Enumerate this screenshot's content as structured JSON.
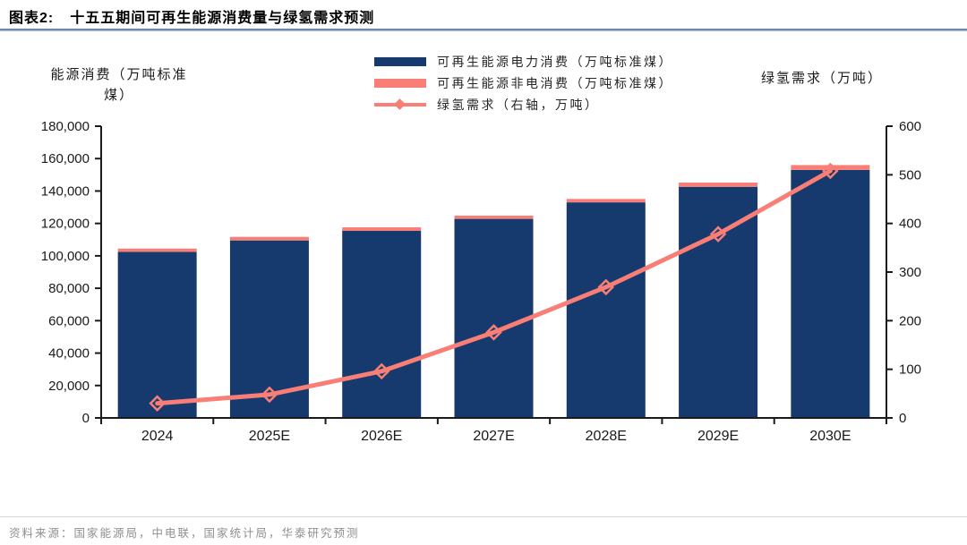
{
  "header": {
    "tag": "图表2:",
    "title": "十五五期间可再生能源消费量与绿氢需求预测"
  },
  "chart_data": {
    "type": "bar",
    "subtype": "stacked-bar-with-line-combo",
    "categories": [
      "2024",
      "2025E",
      "2026E",
      "2027E",
      "2028E",
      "2029E",
      "2030E"
    ],
    "series": [
      {
        "name": "可再生能源电力消费（万吨标准煤）",
        "type": "bar",
        "stack": "consumption",
        "axis": "left",
        "color": "#163A6E",
        "values": [
          102500,
          109500,
          115400,
          122800,
          133000,
          142600,
          153000
        ]
      },
      {
        "name": "可再生能源非电消费（万吨标准煤）",
        "type": "bar",
        "stack": "consumption",
        "axis": "left",
        "color": "#F97E76",
        "values": [
          2000,
          2200,
          2200,
          2000,
          2100,
          2600,
          3000
        ]
      },
      {
        "name": "绿氢需求（右轴，万吨）",
        "type": "line",
        "axis": "right",
        "color": "#F97E76",
        "marker": "hollow-diamond",
        "values": [
          30,
          48,
          96,
          176,
          269,
          378,
          508
        ]
      }
    ],
    "left_axis": {
      "title_line1": "能源消费（万吨标准",
      "title_line2": "煤）",
      "min": 0,
      "max": 180000,
      "tick_labels": [
        "0",
        "20,000",
        "40,000",
        "60,000",
        "80,000",
        "100,000",
        "120,000",
        "140,000",
        "160,000",
        "180,000"
      ]
    },
    "right_axis": {
      "title": "绿氢需求（万吨）",
      "min": 0,
      "max": 600,
      "tick_labels": [
        "0",
        "100",
        "200",
        "300",
        "400",
        "500",
        "600"
      ]
    },
    "legend_position": "top-center",
    "grid": false
  },
  "footer": {
    "source": "资料来源：国家能源局，中电联，国家统计局，华泰研究预测"
  }
}
